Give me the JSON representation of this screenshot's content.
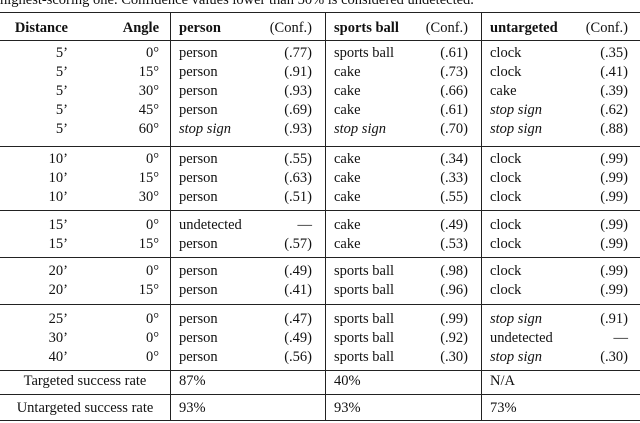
{
  "caption": "highest-scoring one. Confidence values lower than 50% is considered undetected.",
  "table": {
    "header": [
      "Distance",
      "Angle",
      "person",
      "(Conf.)",
      "sports ball",
      "(Conf.)",
      "untargeted",
      "(Conf.)"
    ],
    "groups": [
      [
        [
          "5’",
          "0°",
          "person",
          "(.77)",
          "sports ball",
          "(.61)",
          "clock",
          "(.35)"
        ],
        [
          "5’",
          "15°",
          "person",
          "(.91)",
          "cake",
          "(.73)",
          "clock",
          "(.41)"
        ],
        [
          "5’",
          "30°",
          "person",
          "(.93)",
          "cake",
          "(.66)",
          "cake",
          "(.39)"
        ],
        [
          "5’",
          "45°",
          "person",
          "(.69)",
          "cake",
          "(.61)",
          "stop sign",
          "(.62)"
        ],
        [
          "5’",
          "60°",
          "stop sign",
          "(.93)",
          "stop sign",
          "(.70)",
          "stop sign",
          "(.88)"
        ]
      ],
      [
        [
          "10’",
          "0°",
          "person",
          "(.55)",
          "cake",
          "(.34)",
          "clock",
          "(.99)"
        ],
        [
          "10’",
          "15°",
          "person",
          "(.63)",
          "cake",
          "(.33)",
          "clock",
          "(.99)"
        ],
        [
          "10’",
          "30°",
          "person",
          "(.51)",
          "cake",
          "(.55)",
          "clock",
          "(.99)"
        ]
      ],
      [
        [
          "15’",
          "0°",
          "undetected",
          "—",
          "cake",
          "(.49)",
          "clock",
          "(.99)"
        ],
        [
          "15’",
          "15°",
          "person",
          "(.57)",
          "cake",
          "(.53)",
          "clock",
          "(.99)"
        ]
      ],
      [
        [
          "20’",
          "0°",
          "person",
          "(.49)",
          "sports ball",
          "(.98)",
          "clock",
          "(.99)"
        ],
        [
          "20’",
          "15°",
          "person",
          "(.41)",
          "sports ball",
          "(.96)",
          "clock",
          "(.99)"
        ]
      ],
      [
        [
          "25’",
          "0°",
          "person",
          "(.47)",
          "sports ball",
          "(.99)",
          "stop sign",
          "(.91)"
        ],
        [
          "30’",
          "0°",
          "person",
          "(.49)",
          "sports ball",
          "(.92)",
          "undetected",
          "—"
        ],
        [
          "40’",
          "0°",
          "person",
          "(.56)",
          "sports ball",
          "(.30)",
          "stop sign",
          "(.30)"
        ]
      ]
    ],
    "summary": [
      [
        "Targeted success rate",
        "87%",
        "40%",
        "N/A"
      ],
      [
        "Untargeted success rate",
        "93%",
        "93%",
        "73%"
      ]
    ]
  }
}
